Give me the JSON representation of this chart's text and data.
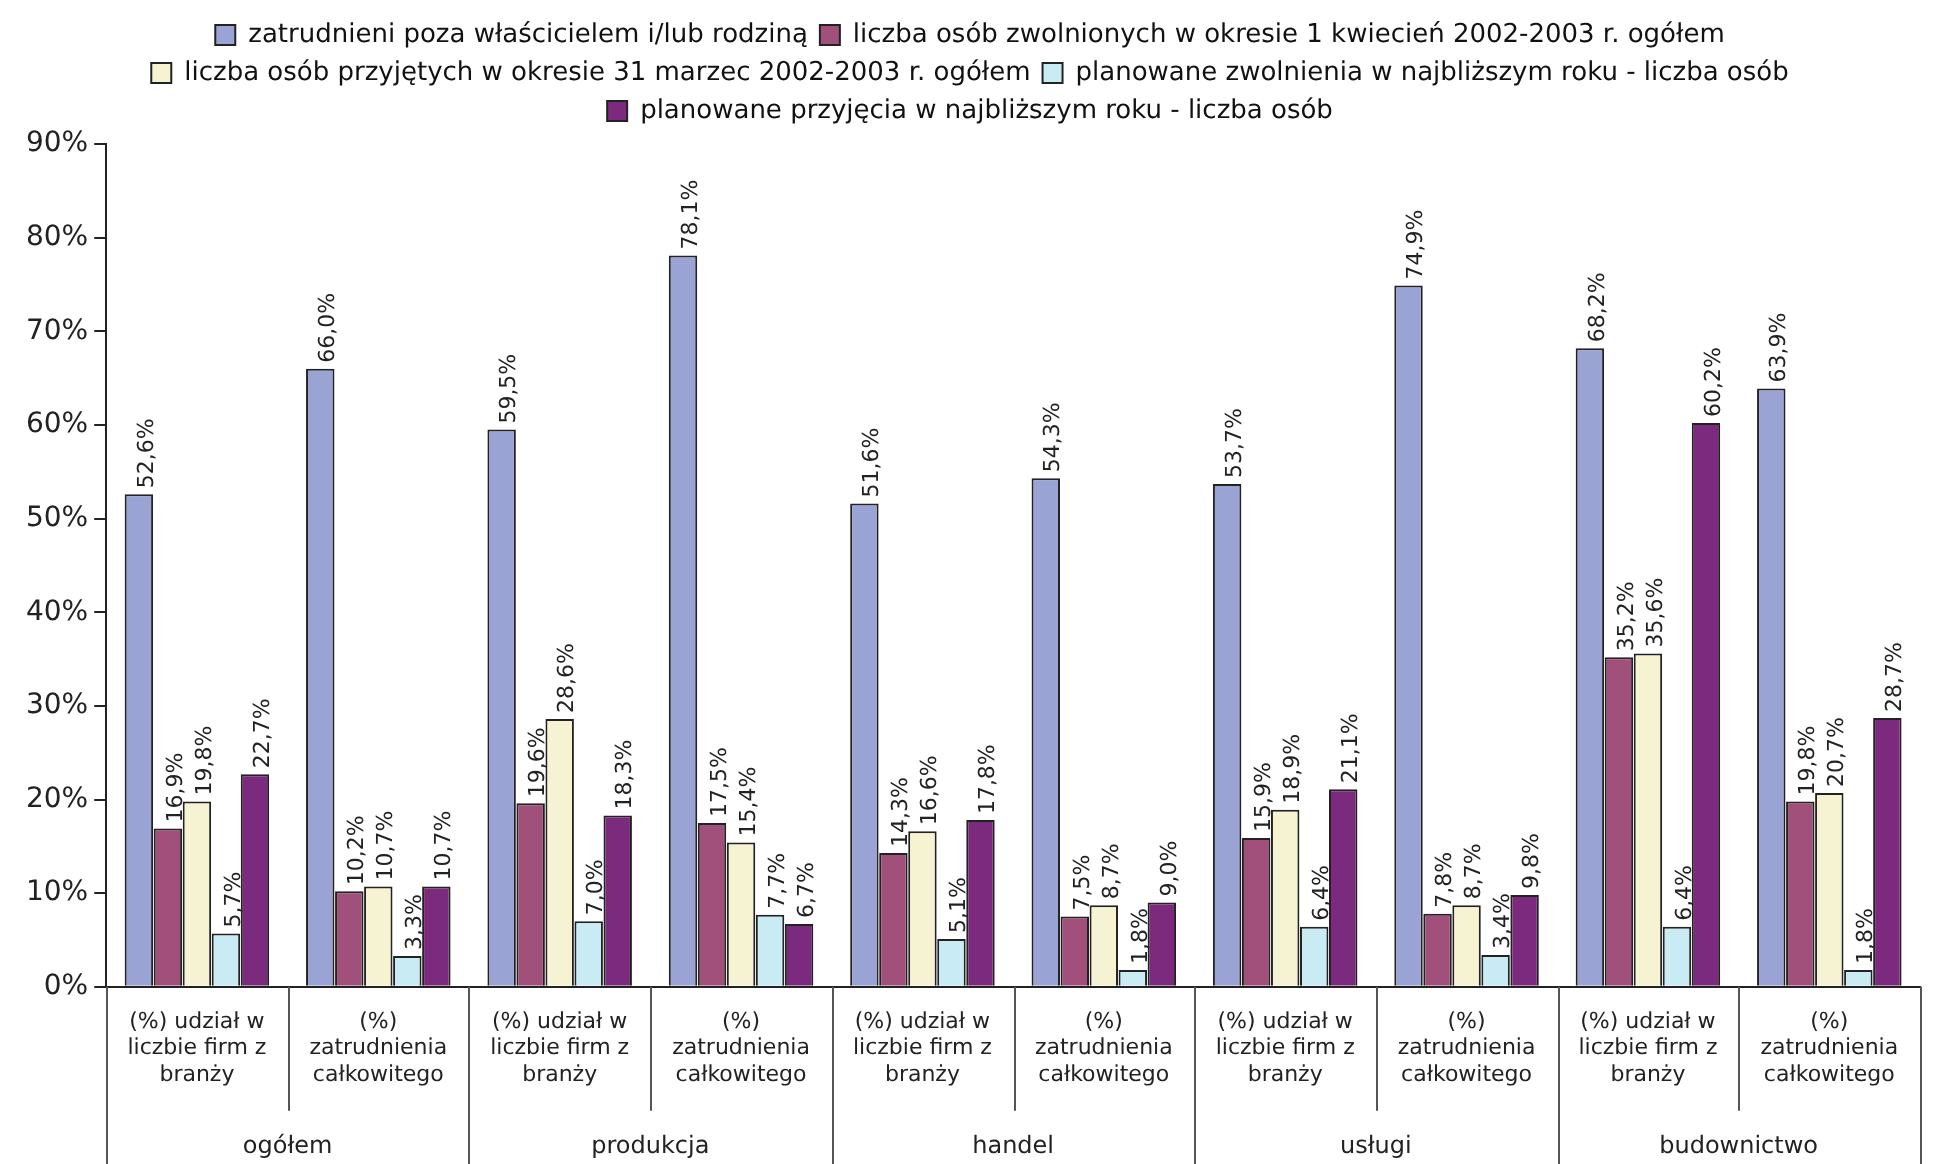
{
  "chart_data": {
    "type": "bar",
    "categories": [
      "(%) udział w liczbie firm z branży",
      "(%) zatrudnienia całkowitego",
      "(%) udział w liczbie firm z branży",
      "(%) zatrudnienia całkowitego",
      "(%) udział w liczbie firm z branży",
      "(%) zatrudnienia całkowitego",
      "(%) udział w liczbie firm z branży",
      "(%) zatrudnienia całkowitego",
      "(%) udział w liczbie firm z branży",
      "(%) zatrudnienia całkowitego"
    ],
    "annotations": [
      "ogółem",
      "produkcja",
      "handel",
      "usługi",
      "budownictwo"
    ],
    "series": [
      {
        "name": "zatrudnieni poza właścicielem i/lub rodziną",
        "color": "#99a3d4",
        "values": [
          52.6,
          66.0,
          59.5,
          78.1,
          51.6,
          54.3,
          53.7,
          74.9,
          68.2,
          63.9
        ],
        "value_labels": [
          "52,6%",
          "66,0%",
          "59,5%",
          "78,1%",
          "51,6%",
          "54,3%",
          "53,7%",
          "74,9%",
          "68,2%",
          "63,9%"
        ]
      },
      {
        "name": "liczba osób zwolnionych w okresie 1 kwiecień 2002-2003 r. ogółem",
        "color": "#a0507a",
        "values": [
          16.9,
          10.2,
          19.6,
          17.5,
          14.3,
          7.5,
          15.9,
          7.8,
          35.2,
          19.8
        ],
        "value_labels": [
          "16,9%",
          "10,2%",
          "19,6%",
          "17,5%",
          "14,3%",
          "7,5%",
          "15,9%",
          "7,8%",
          "35,2%",
          "19,8%"
        ]
      },
      {
        "name": "liczba osób przyjętych w okresie 31 marzec 2002-2003 r. ogółem",
        "color": "#f5f3d2",
        "values": [
          19.8,
          10.7,
          28.6,
          15.4,
          16.6,
          8.7,
          18.9,
          8.7,
          35.6,
          20.7
        ],
        "value_labels": [
          "19,8%",
          "10,7%",
          "28,6%",
          "15,4%",
          "16,6%",
          "8,7%",
          "18,9%",
          "8,7%",
          "35,6%",
          "20,7%"
        ]
      },
      {
        "name": "planowane zwolnienia w najbliższym roku - liczba osób",
        "color": "#c9ecf4",
        "values": [
          5.7,
          3.3,
          7.0,
          7.7,
          5.1,
          1.8,
          6.4,
          3.4,
          6.4,
          1.8
        ],
        "value_labels": [
          "5,7%",
          "3,3%",
          "7,0%",
          "7,7%",
          "5,1%",
          "1,8%",
          "6,4%",
          "3,4%",
          "6,4%",
          "1,8%"
        ]
      },
      {
        "name": "planowane przyjęcia w najbliższym roku - liczba osób",
        "color": "#7b2a7d",
        "values": [
          22.7,
          10.7,
          18.3,
          6.7,
          17.8,
          9.0,
          21.1,
          9.8,
          60.2,
          28.7
        ],
        "value_labels": [
          "22,7%",
          "10,7%",
          "18,3%",
          "6,7%",
          "17,8%",
          "9,0%",
          "21,1%",
          "9,8%",
          "60,2%",
          "28,7%"
        ]
      }
    ],
    "ylim": [
      0,
      90
    ],
    "yticks": [
      {
        "value": 0,
        "label": "0%"
      },
      {
        "value": 10,
        "label": "10%"
      },
      {
        "value": 20,
        "label": "20%"
      },
      {
        "value": 30,
        "label": "30%"
      },
      {
        "value": 40,
        "label": "40%"
      },
      {
        "value": 50,
        "label": "50%"
      },
      {
        "value": 60,
        "label": "60%"
      },
      {
        "value": 70,
        "label": "70%"
      },
      {
        "value": 80,
        "label": "80%"
      },
      {
        "value": 90,
        "label": "90%"
      }
    ],
    "grid": false,
    "legend": "top"
  }
}
